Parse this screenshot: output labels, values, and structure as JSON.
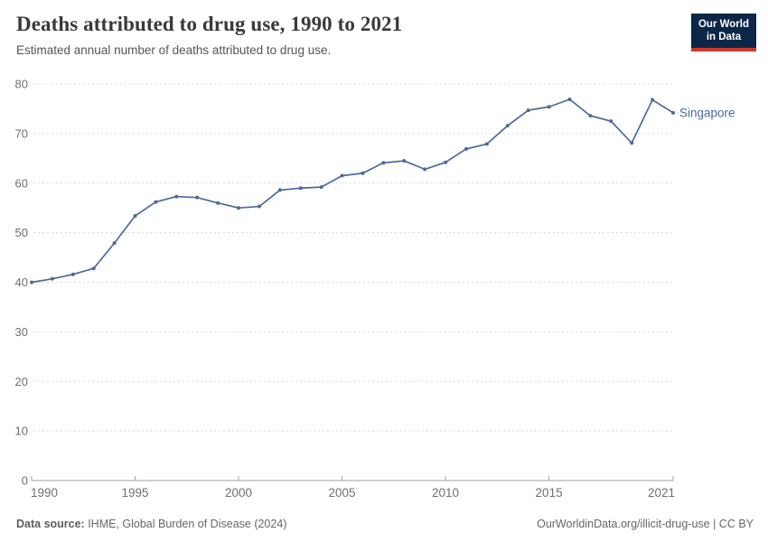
{
  "header": {
    "title": "Deaths attributed to drug use, 1990 to 2021",
    "subtitle": "Estimated annual number of deaths attributed to drug use."
  },
  "logo": {
    "line1": "Our World",
    "line2": "in Data",
    "bg_color": "#0c2647",
    "accent_color": "#cc392c"
  },
  "chart_data": {
    "type": "line",
    "title": "Deaths attributed to drug use, 1990 to 2021",
    "subtitle": "Estimated annual number of deaths attributed to drug use.",
    "x": [
      1990,
      1991,
      1992,
      1993,
      1994,
      1995,
      1996,
      1997,
      1998,
      1999,
      2000,
      2001,
      2002,
      2003,
      2004,
      2005,
      2006,
      2007,
      2008,
      2009,
      2010,
      2011,
      2012,
      2013,
      2014,
      2015,
      2016,
      2017,
      2018,
      2019,
      2020,
      2021
    ],
    "series": [
      {
        "name": "Singapore",
        "color": "#4C6A9C",
        "values": [
          40.0,
          40.7,
          41.6,
          42.8,
          47.9,
          53.4,
          56.2,
          57.3,
          57.1,
          56.0,
          55.0,
          55.3,
          58.6,
          59.0,
          59.2,
          61.5,
          62.0,
          64.1,
          64.5,
          62.8,
          64.2,
          66.9,
          67.9,
          71.6,
          74.7,
          75.4,
          76.9,
          73.6,
          72.5,
          68.1,
          76.8,
          74.2
        ]
      }
    ],
    "xlim": [
      1990,
      2021
    ],
    "ylim": [
      0,
      80
    ],
    "x_ticks": [
      1990,
      1995,
      2000,
      2005,
      2010,
      2015,
      2021
    ],
    "y_ticks": [
      0,
      10,
      20,
      30,
      40,
      50,
      60,
      70,
      80
    ],
    "grid": "horizontal-dashed",
    "legend": "end-of-line-label",
    "xlabel": "",
    "ylabel": ""
  },
  "footer": {
    "datasource_label": "Data source:",
    "datasource_text": " IHME, Global Burden of Disease (2024)",
    "credit": "OurWorldinData.org/illicit-drug-use | CC BY"
  }
}
